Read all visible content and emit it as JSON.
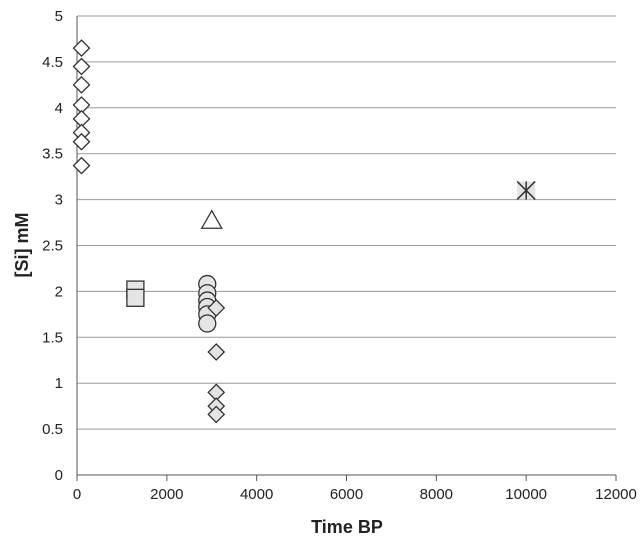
{
  "chart_data": {
    "type": "scatter",
    "title": "",
    "xlabel": "Time BP",
    "ylabel": "[Si] mM",
    "xlim": [
      0,
      12000
    ],
    "ylim": [
      0,
      5
    ],
    "x_ticks": [
      "0",
      "2000",
      "4000",
      "6000",
      "8000",
      "10000",
      "12000"
    ],
    "y_ticks": [
      "0",
      "0.5",
      "1",
      "1.5",
      "2",
      "2.5",
      "3",
      "3.5",
      "4",
      "4.5",
      "5"
    ],
    "grid": "horizontal",
    "legend": "none",
    "series": [
      {
        "marker": "diamond",
        "fill": "#ffffff",
        "points": [
          {
            "x": 100,
            "y": 4.65
          },
          {
            "x": 100,
            "y": 4.45
          },
          {
            "x": 100,
            "y": 4.25
          },
          {
            "x": 100,
            "y": 4.03
          },
          {
            "x": 100,
            "y": 3.88
          },
          {
            "x": 100,
            "y": 3.73
          },
          {
            "x": 100,
            "y": 3.63
          },
          {
            "x": 100,
            "y": 3.37
          }
        ]
      },
      {
        "marker": "square",
        "fill": "#e4e4e4",
        "points": [
          {
            "x": 1300,
            "y": 2.02
          },
          {
            "x": 1300,
            "y": 1.93
          }
        ]
      },
      {
        "marker": "circle",
        "fill": "#e4e4e4",
        "points": [
          {
            "x": 2900,
            "y": 2.08
          },
          {
            "x": 2900,
            "y": 1.98
          },
          {
            "x": 2900,
            "y": 1.9
          },
          {
            "x": 2900,
            "y": 1.83
          },
          {
            "x": 2900,
            "y": 1.75
          },
          {
            "x": 2900,
            "y": 1.65
          }
        ]
      },
      {
        "marker": "diamond",
        "fill": "#e4e4e4",
        "points": [
          {
            "x": 3100,
            "y": 1.82
          },
          {
            "x": 3100,
            "y": 1.34
          },
          {
            "x": 3100,
            "y": 0.9
          },
          {
            "x": 3100,
            "y": 0.75
          },
          {
            "x": 3100,
            "y": 0.66
          }
        ]
      },
      {
        "marker": "triangle",
        "fill": "#ffffff",
        "points": [
          {
            "x": 3000,
            "y": 2.77
          }
        ]
      },
      {
        "marker": "star",
        "fill": "#e4e4e4",
        "points": [
          {
            "x": 10000,
            "y": 3.1
          }
        ]
      }
    ]
  },
  "colors": {
    "gridline": "#9a9a9a",
    "marker_stroke": "#333333",
    "axis": "#555555"
  }
}
